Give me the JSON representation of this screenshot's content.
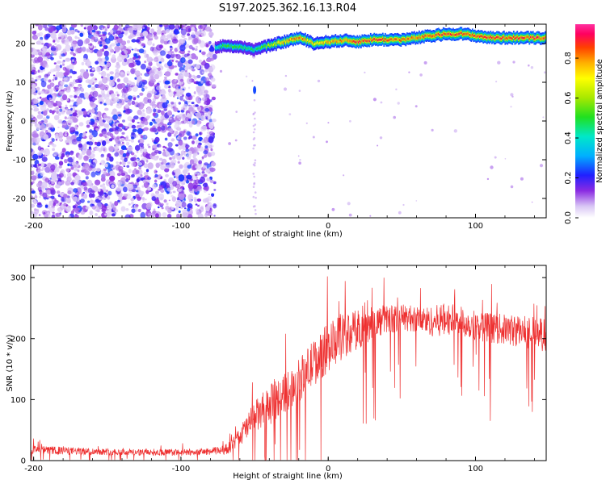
{
  "title": "S197.2025.362.16.13.R04",
  "colors": {
    "signal": "#ee3030",
    "axis": "#000000",
    "background": "#ffffff"
  },
  "chart_data": [
    {
      "type": "heatmap",
      "xlabel": "Height of straight line (km)",
      "ylabel": "Frequency (Hz)",
      "xlim": [
        -202,
        148
      ],
      "ylim": [
        -25,
        25
      ],
      "xticks": [
        -200,
        -100,
        0,
        100
      ],
      "xtick_labels": [
        "-200",
        "-100",
        "0",
        "100"
      ],
      "yticks": [
        -20,
        -10,
        0,
        10,
        20
      ],
      "ytick_labels": [
        "-20",
        "-10",
        "0",
        "10",
        "20"
      ],
      "colorbar": {
        "label": "Normalized spectral amplitude",
        "range": [
          0,
          0.97
        ],
        "ticks": [
          0,
          0.2,
          0.4,
          0.6,
          0.8
        ],
        "tick_labels": [
          "0.0",
          "0.2",
          "0.4",
          "0.6",
          "0.8"
        ]
      },
      "noise_region_x": [
        -202,
        -77
      ],
      "noise_amplitude_range": [
        0.05,
        0.25
      ],
      "signal_line": {
        "x": [
          -77,
          -70,
          -60,
          -50,
          -40,
          -30,
          -20,
          -10,
          0,
          10,
          20,
          30,
          40,
          50,
          60,
          70,
          80,
          90,
          100,
          110,
          120,
          130,
          140,
          148
        ],
        "frequency_hz": [
          19,
          19.5,
          19,
          18.5,
          19.5,
          20.5,
          21.5,
          20,
          20.5,
          20.8,
          20.5,
          21,
          21,
          21,
          21.5,
          22,
          22.5,
          22.5,
          22,
          21.5,
          21.5,
          21.5,
          21.5,
          21.5
        ],
        "peak_amplitude": [
          0.45,
          0.55,
          0.55,
          0.5,
          0.7,
          0.85,
          0.9,
          0.8,
          0.85,
          0.9,
          0.95,
          0.95,
          0.95,
          0.9,
          0.9,
          0.95,
          0.95,
          0.95,
          0.95,
          0.95,
          0.95,
          0.95,
          0.95,
          0.95
        ]
      },
      "isolated_spot": {
        "x": -50,
        "frequency_hz": 8,
        "amplitude": 0.25
      }
    },
    {
      "type": "line",
      "xlabel": "Height of straight line (km)",
      "ylabel": "SNR (10 * v/v)",
      "xlim": [
        -202,
        148
      ],
      "ylim": [
        0,
        320
      ],
      "xticks": [
        -200,
        -100,
        0,
        100
      ],
      "xtick_labels": [
        "-200",
        "-100",
        "0",
        "100"
      ],
      "yticks": [
        0,
        100,
        200,
        300
      ],
      "ytick_labels": [
        "0",
        "100",
        "200",
        "300"
      ],
      "series": [
        {
          "name": "SNR",
          "x": [
            -202,
            -180,
            -160,
            -140,
            -120,
            -100,
            -80,
            -70,
            -65,
            -60,
            -55,
            -50,
            -45,
            -40,
            -30,
            -20,
            -10,
            0,
            10,
            20,
            30,
            40,
            50,
            60,
            70,
            80,
            90,
            100,
            110,
            120,
            130,
            140,
            148
          ],
          "mean": [
            18,
            16,
            15,
            14,
            14,
            13,
            15,
            18,
            25,
            40,
            55,
            70,
            80,
            90,
            110,
            130,
            160,
            185,
            205,
            215,
            225,
            232,
            235,
            232,
            228,
            232,
            228,
            222,
            218,
            215,
            212,
            210,
            205
          ],
          "spread": [
            12,
            12,
            10,
            10,
            10,
            10,
            10,
            15,
            20,
            30,
            40,
            50,
            55,
            60,
            60,
            65,
            70,
            75,
            70,
            60,
            50,
            45,
            40,
            40,
            45,
            50,
            45,
            45,
            45,
            45,
            50,
            50,
            50
          ]
        }
      ]
    }
  ]
}
